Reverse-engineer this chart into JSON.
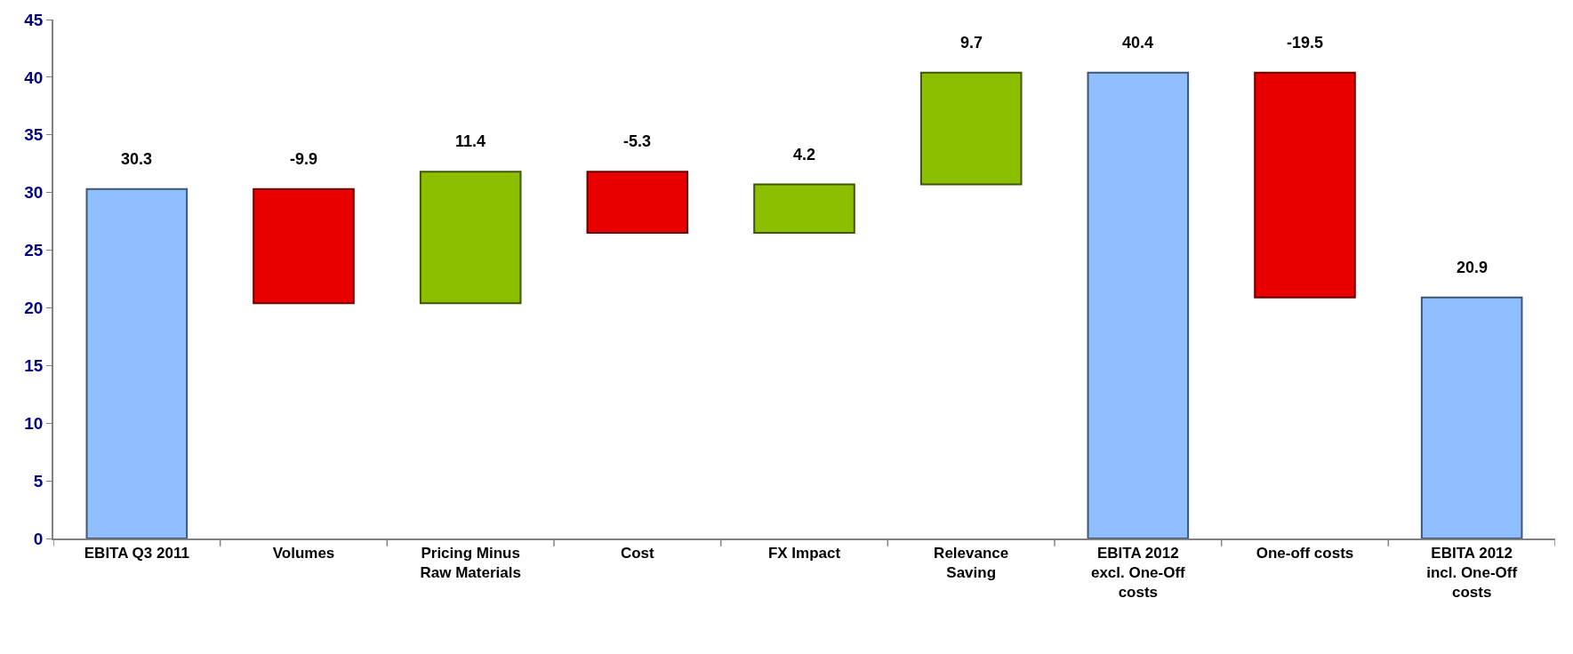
{
  "chart_data": {
    "type": "bar",
    "categories": [
      "EBITA Q3 2011",
      "Volumes",
      "Pricing Minus Raw Materials",
      "Cost",
      "FX Impact",
      "Relevance Saving",
      "EBITA 2012 excl. One-Off costs",
      "One-off costs",
      "EBITA 2012 incl. One-Off costs"
    ],
    "values": [
      30.3,
      -9.9,
      11.4,
      -5.3,
      4.2,
      9.7,
      40.4,
      -19.5,
      20.9
    ],
    "base": [
      0,
      30.3,
      20.4,
      31.8,
      26.5,
      30.7,
      0,
      40.4,
      0
    ],
    "colors": [
      "#8fbfff",
      "#e80000",
      "#8cbf00",
      "#e80000",
      "#8cbf00",
      "#8cbf00",
      "#8fbfff",
      "#e80000",
      "#8fbfff"
    ],
    "data_labels": true,
    "ylim": [
      0,
      45
    ],
    "yticks": [
      0,
      5,
      10,
      15,
      20,
      25,
      30,
      35,
      40,
      45
    ],
    "legend": false
  }
}
